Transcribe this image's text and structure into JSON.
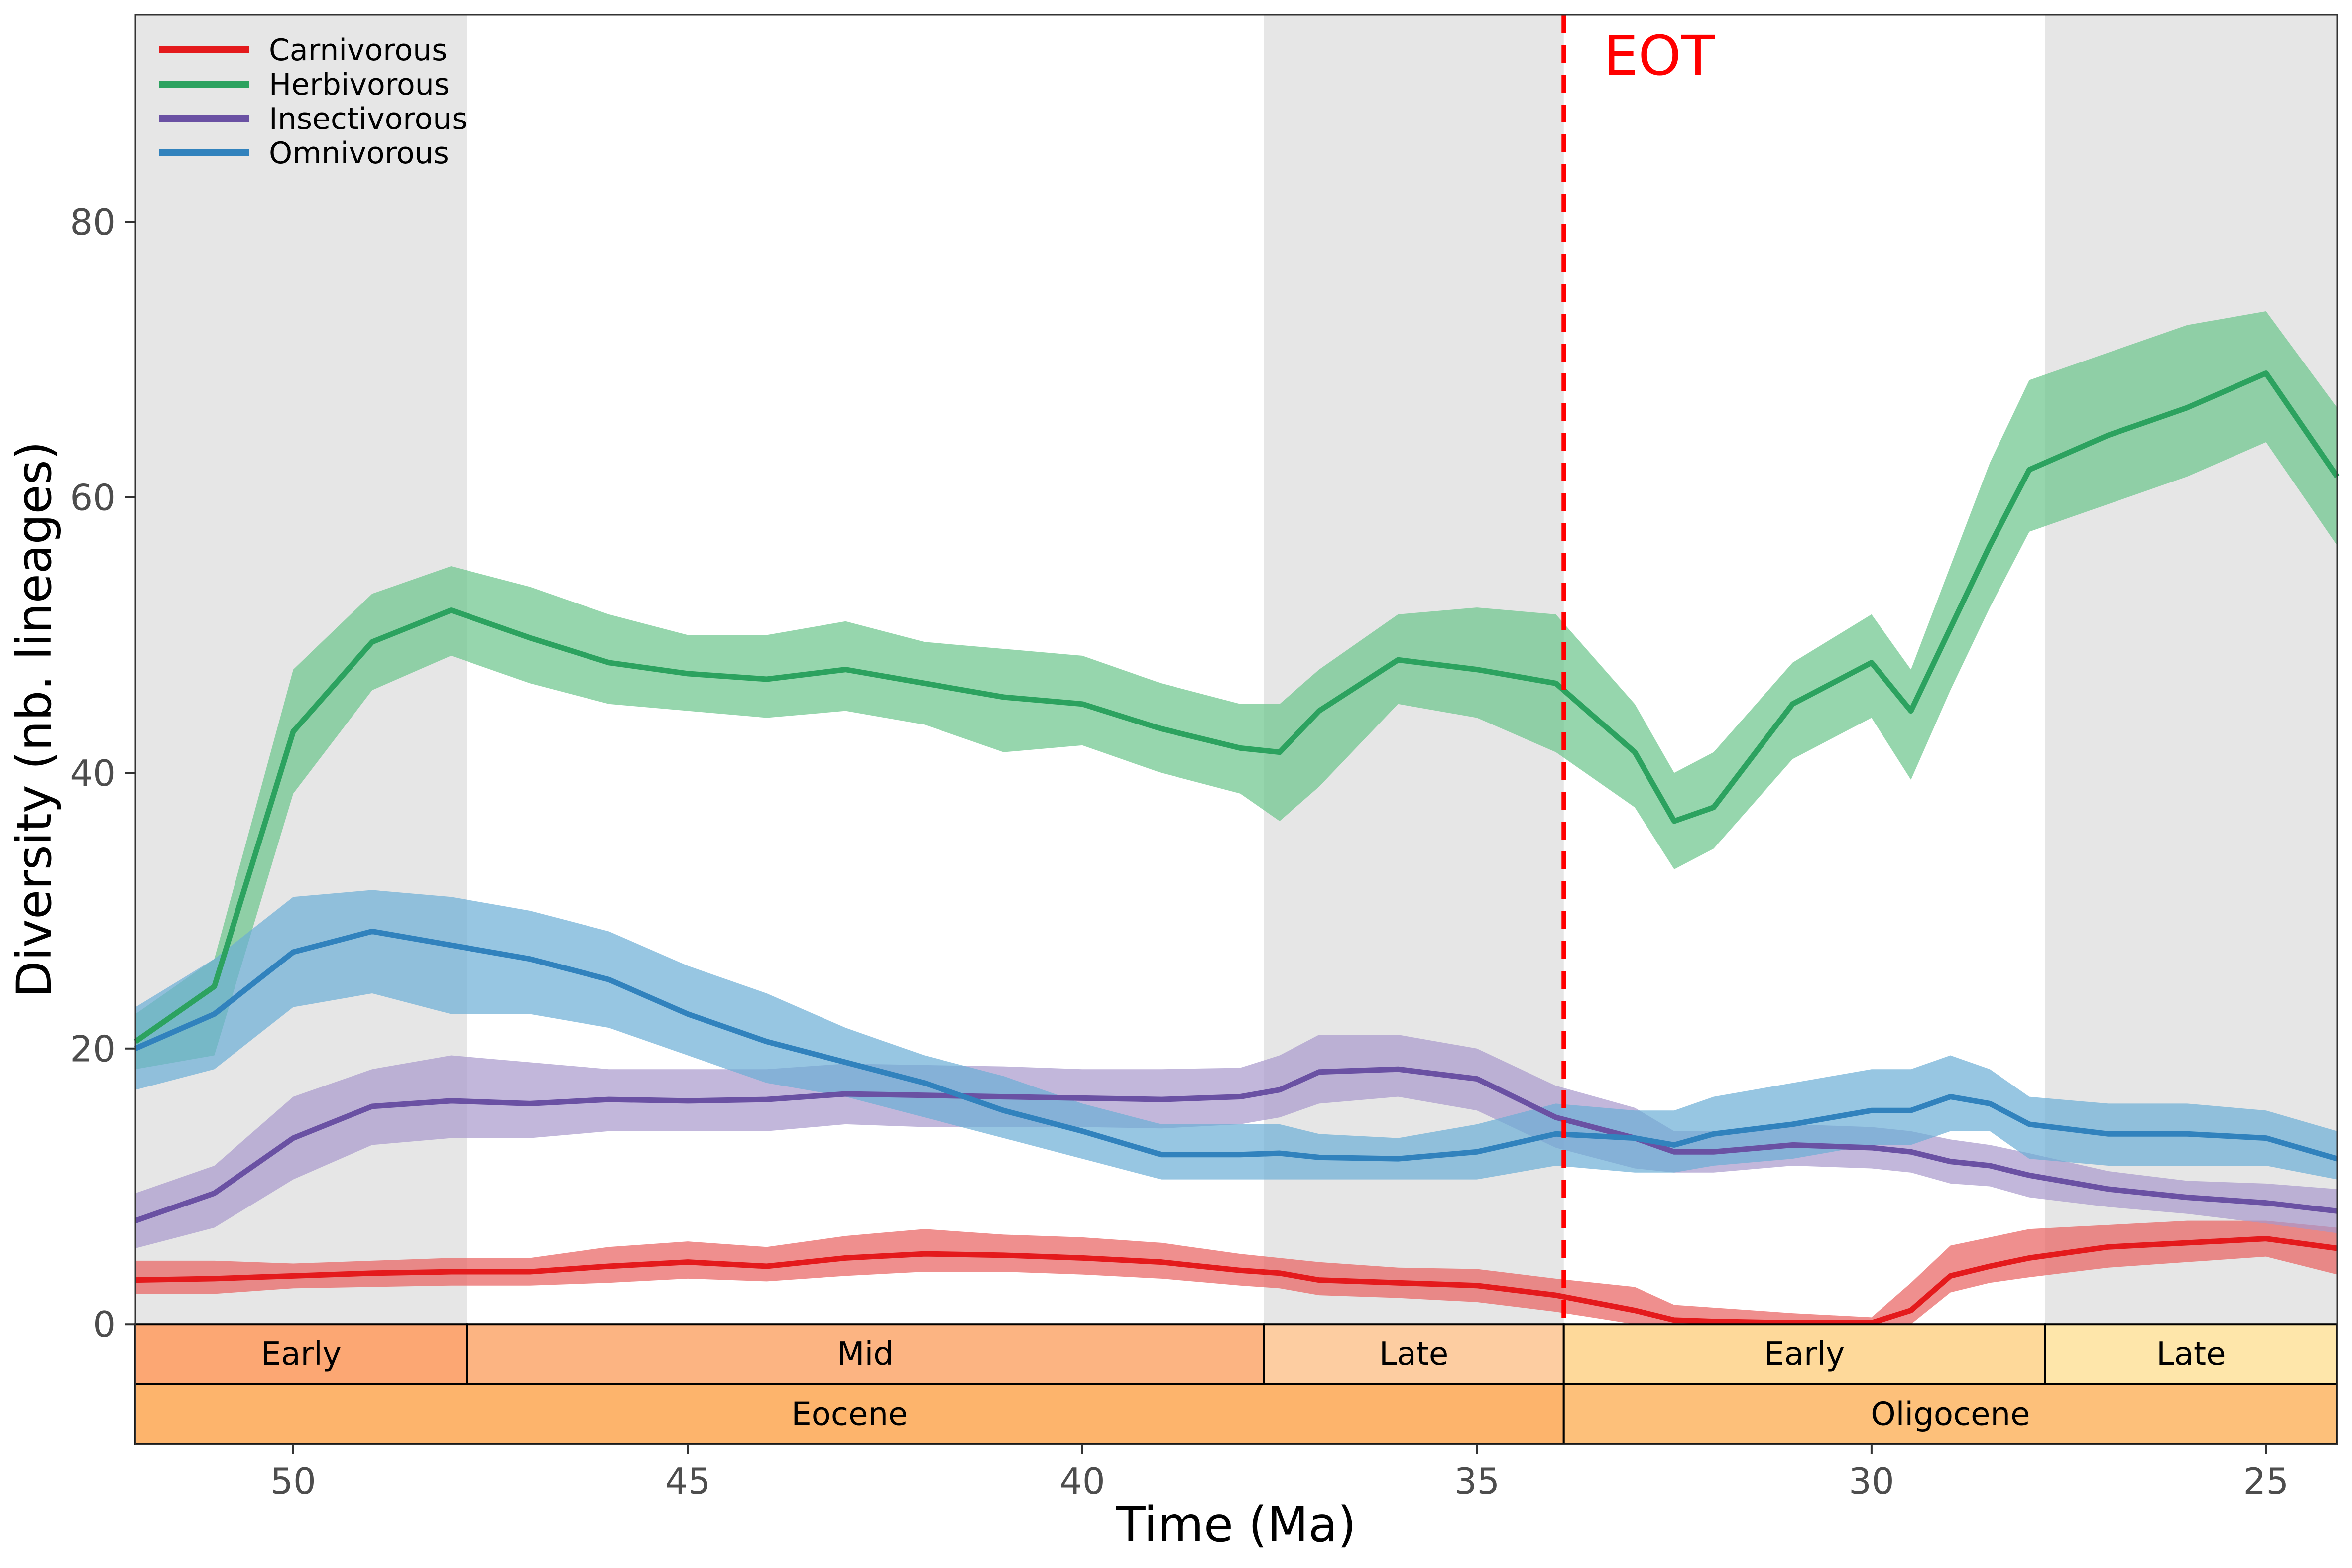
{
  "chart_data": {
    "type": "line",
    "xlabel": "Time (Ma)",
    "ylabel": "Diversity (nb. lineages)",
    "xlim": [
      52,
      24.1
    ],
    "ylim": [
      -8.7,
      95
    ],
    "x_reversed": true,
    "x_ticks": [
      50,
      45,
      40,
      35,
      30,
      25
    ],
    "y_ticks": [
      0,
      20,
      40,
      60,
      80
    ],
    "grid": false,
    "legend_position": "top-left",
    "shaded_intervals": [
      [
        52,
        47.8
      ],
      [
        37.7,
        33.9
      ],
      [
        27.8,
        24.1
      ]
    ],
    "eot": {
      "x": 33.9,
      "label": "EOT",
      "color": "#ff0000"
    },
    "timescale": {
      "epochs": [
        {
          "label": "Eocene",
          "start": 52,
          "end": 33.9,
          "color": "#fdb46c"
        },
        {
          "label": "Oligocene",
          "start": 33.9,
          "end": 24.1,
          "color": "#fdc07a"
        }
      ],
      "ages": [
        {
          "label": "Early",
          "start": 52,
          "end": 47.8,
          "color": "#fca773"
        },
        {
          "label": "Mid",
          "start": 47.8,
          "end": 37.7,
          "color": "#fcb482"
        },
        {
          "label": "Late",
          "start": 37.7,
          "end": 33.9,
          "color": "#fdcda1"
        },
        {
          "label": "Early",
          "start": 33.9,
          "end": 27.8,
          "color": "#fed99a"
        },
        {
          "label": "Late",
          "start": 27.8,
          "end": 24.1,
          "color": "#fee6aa"
        }
      ]
    },
    "x": [
      52,
      51,
      50,
      49,
      48,
      47,
      46,
      45,
      44,
      43,
      42,
      41,
      40,
      39,
      38,
      37.5,
      37,
      36,
      35,
      34,
      33,
      32.5,
      32,
      31,
      30,
      29.5,
      29,
      28.5,
      28,
      27,
      26,
      25,
      24.1
    ],
    "series": [
      {
        "name": "Carnivorous",
        "color": "#e41a1c",
        "band_color": "#e8605e",
        "mean": [
          3.2,
          3.3,
          3.5,
          3.7,
          3.8,
          3.8,
          4.2,
          4.5,
          4.2,
          4.8,
          5.1,
          5.0,
          4.8,
          4.5,
          3.9,
          3.7,
          3.2,
          3.0,
          2.8,
          2.1,
          1.0,
          0.3,
          0.2,
          0.1,
          0.1,
          1.0,
          3.5,
          4.2,
          4.8,
          5.6,
          5.9,
          6.2,
          5.5
        ],
        "lower": [
          2.2,
          2.2,
          2.6,
          2.7,
          2.8,
          2.8,
          3.0,
          3.3,
          3.1,
          3.5,
          3.8,
          3.8,
          3.6,
          3.3,
          2.8,
          2.6,
          2.1,
          1.9,
          1.6,
          0.9,
          0.0,
          0.0,
          0.0,
          0.0,
          0.0,
          0.0,
          2.3,
          3.0,
          3.4,
          4.1,
          4.5,
          4.9,
          3.6
        ],
        "upper": [
          4.6,
          4.6,
          4.4,
          4.6,
          4.8,
          4.8,
          5.6,
          6.0,
          5.6,
          6.4,
          6.9,
          6.5,
          6.3,
          5.9,
          5.1,
          4.8,
          4.5,
          4.1,
          4.0,
          3.3,
          2.7,
          1.4,
          1.2,
          0.8,
          0.5,
          3.0,
          5.7,
          6.3,
          6.9,
          7.2,
          7.5,
          7.5,
          7.0
        ]
      },
      {
        "name": "Herbivorous",
        "color": "#2ca25f",
        "band_color": "#6ac48a",
        "mean": [
          20.5,
          24.5,
          43.0,
          49.5,
          51.8,
          49.8,
          48.0,
          47.2,
          46.8,
          47.5,
          46.5,
          45.5,
          45.0,
          43.2,
          41.8,
          41.5,
          44.5,
          48.2,
          47.5,
          46.5,
          41.5,
          36.5,
          37.5,
          45.0,
          48.0,
          44.5,
          50.5,
          56.5,
          62.0,
          64.5,
          66.5,
          69.0,
          61.5
        ],
        "lower": [
          18.5,
          19.5,
          38.5,
          46.0,
          48.5,
          46.5,
          45.0,
          44.5,
          44.0,
          44.5,
          43.5,
          41.5,
          42.0,
          40.0,
          38.5,
          36.5,
          39.0,
          45.0,
          44.0,
          41.5,
          37.5,
          33.0,
          34.5,
          41.0,
          44.0,
          39.5,
          46.0,
          52.0,
          57.5,
          59.5,
          61.5,
          64.0,
          56.5
        ],
        "upper": [
          22.5,
          26.5,
          47.5,
          53.0,
          55.0,
          53.5,
          51.5,
          50.0,
          50.0,
          51.0,
          49.5,
          49.0,
          48.5,
          46.5,
          45.0,
          45.0,
          47.5,
          51.5,
          52.0,
          51.5,
          45.0,
          40.0,
          41.5,
          48.0,
          51.5,
          47.5,
          55.0,
          62.5,
          68.5,
          70.5,
          72.5,
          73.5,
          66.5
        ]
      },
      {
        "name": "Insectivorous",
        "color": "#6a51a3",
        "band_color": "#a899cc",
        "mean": [
          7.5,
          9.5,
          13.5,
          15.8,
          16.2,
          16.0,
          16.3,
          16.2,
          16.3,
          16.7,
          16.6,
          16.5,
          16.4,
          16.3,
          16.5,
          17.0,
          18.3,
          18.5,
          17.8,
          15.0,
          13.5,
          12.5,
          12.5,
          13.0,
          12.8,
          12.5,
          11.8,
          11.5,
          10.8,
          9.8,
          9.2,
          8.8,
          8.2
        ],
        "lower": [
          5.5,
          7.0,
          10.5,
          13.0,
          13.5,
          13.5,
          14.0,
          14.0,
          14.0,
          14.5,
          14.3,
          14.3,
          14.3,
          14.2,
          14.5,
          15.0,
          16.0,
          16.5,
          15.5,
          12.8,
          11.3,
          11.0,
          11.0,
          11.5,
          11.3,
          11.0,
          10.2,
          10.0,
          9.2,
          8.5,
          8.0,
          7.3,
          6.6
        ],
        "upper": [
          9.5,
          11.5,
          16.5,
          18.5,
          19.5,
          19.0,
          18.5,
          18.5,
          18.5,
          18.9,
          18.8,
          18.7,
          18.5,
          18.5,
          18.6,
          19.5,
          21.0,
          21.0,
          20.0,
          17.3,
          15.7,
          14.0,
          14.0,
          14.5,
          14.3,
          14.0,
          13.4,
          13.0,
          12.4,
          11.1,
          10.4,
          10.2,
          9.8
        ]
      },
      {
        "name": "Omnivorous",
        "color": "#3182bd",
        "band_color": "#6baed6",
        "mean": [
          20.0,
          22.5,
          27.0,
          28.5,
          27.5,
          26.5,
          25.0,
          22.5,
          20.5,
          19.0,
          17.5,
          15.5,
          14.0,
          12.3,
          12.3,
          12.4,
          12.1,
          12.0,
          12.5,
          13.8,
          13.5,
          13.0,
          13.8,
          14.5,
          15.5,
          15.5,
          16.5,
          16.0,
          14.5,
          13.8,
          13.8,
          13.5,
          12.0
        ],
        "lower": [
          17.0,
          18.5,
          23.0,
          24.0,
          22.5,
          22.5,
          21.5,
          19.5,
          17.5,
          16.5,
          15.0,
          13.5,
          12.0,
          10.5,
          10.5,
          10.5,
          10.5,
          10.5,
          10.5,
          11.5,
          11.0,
          11.0,
          11.5,
          12.0,
          13.0,
          13.0,
          14.0,
          14.0,
          12.0,
          11.5,
          11.5,
          11.5,
          10.5
        ],
        "upper": [
          23.0,
          26.5,
          31.0,
          31.5,
          31.0,
          30.0,
          28.5,
          26.0,
          24.0,
          21.5,
          19.5,
          18.0,
          16.0,
          14.5,
          14.5,
          14.5,
          13.8,
          13.5,
          14.5,
          16.0,
          15.5,
          15.5,
          16.5,
          17.5,
          18.5,
          18.5,
          19.5,
          18.5,
          16.5,
          16.0,
          16.0,
          15.5,
          14.0
        ]
      }
    ]
  }
}
